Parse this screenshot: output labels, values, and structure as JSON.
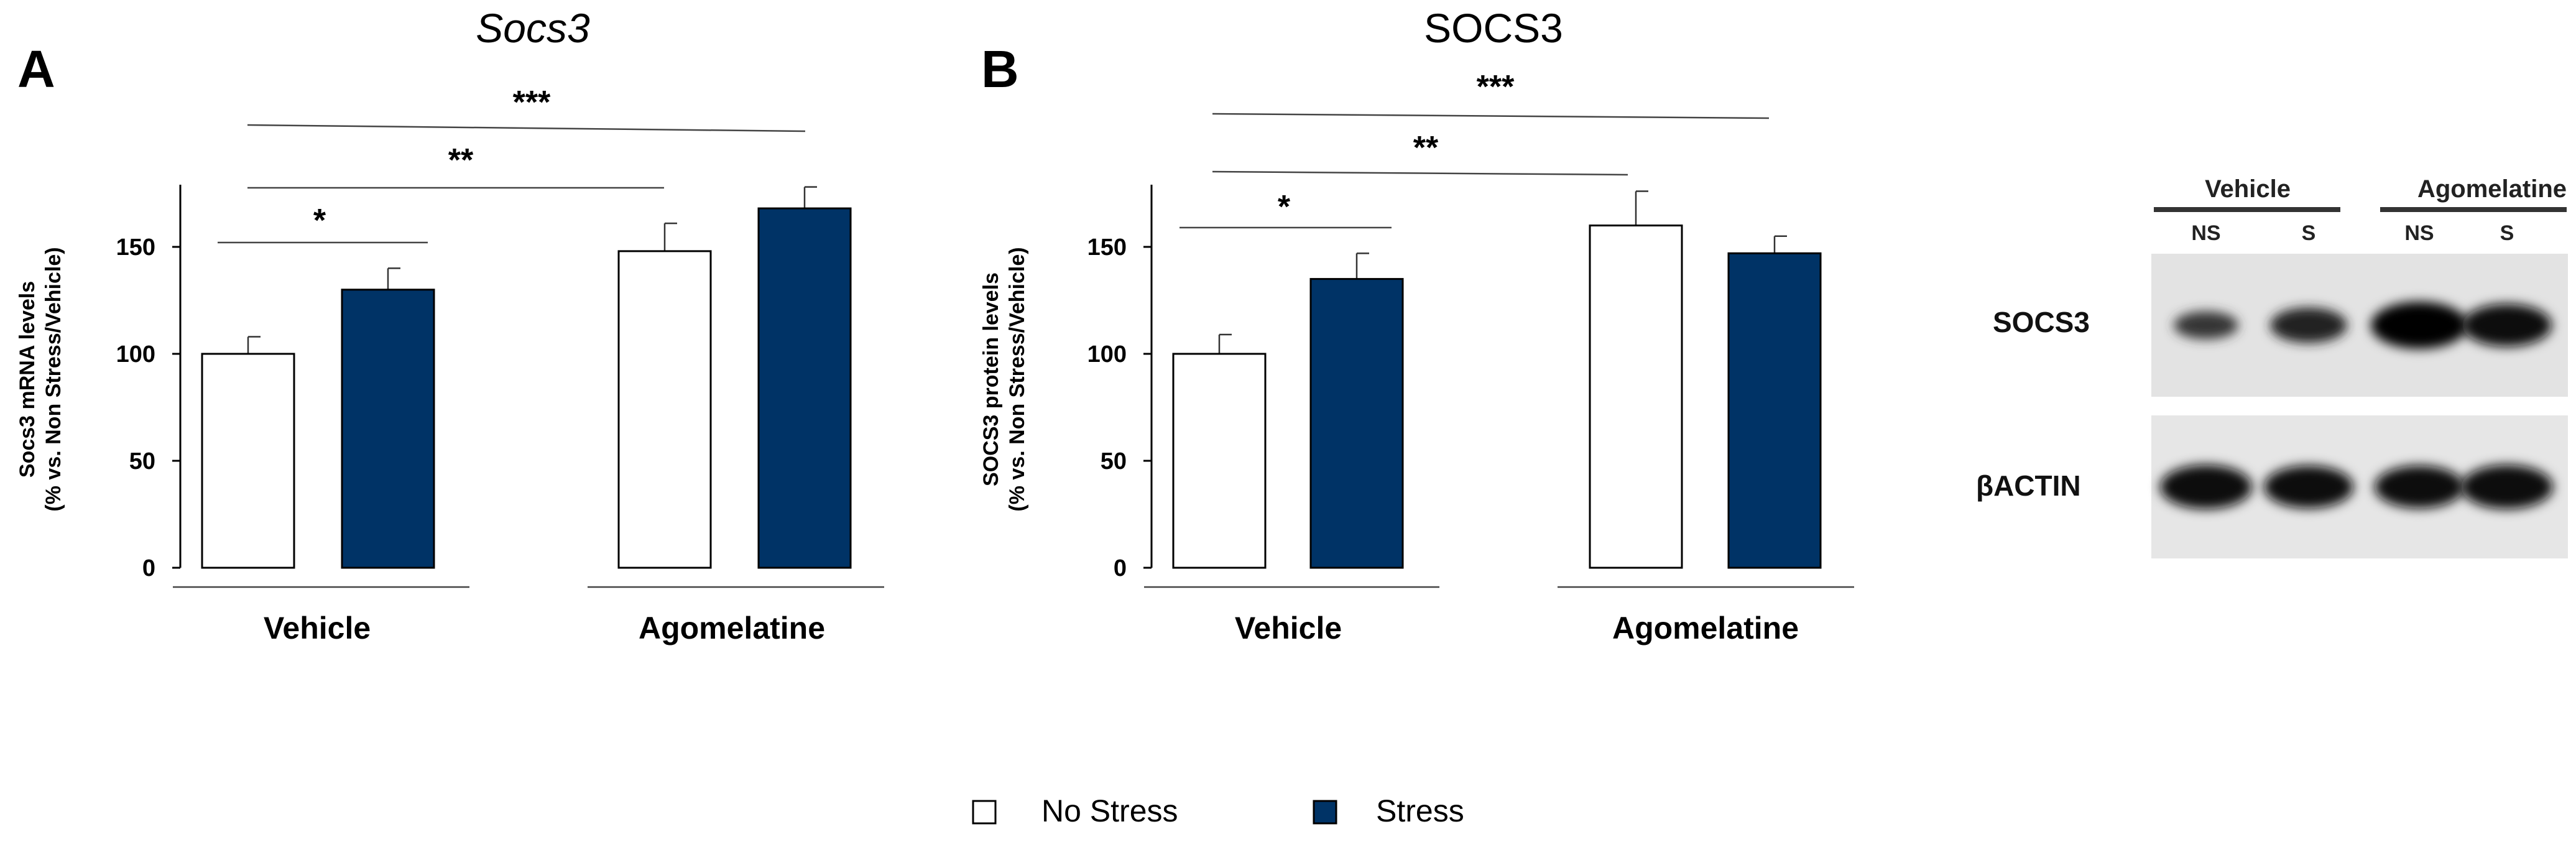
{
  "chart_data": [
    {
      "panel": "A",
      "type": "bar",
      "title": "Socs3",
      "title_italic": true,
      "ylabel_line1": "Socs3 mRNA levels",
      "ylabel_line2": "(% vs. Non Stress/Vehicle)",
      "ylim": [
        0,
        175
      ],
      "yticks": [
        "0",
        "50",
        "100",
        "150"
      ],
      "groups": [
        "Vehicle",
        "Agomelatine"
      ],
      "series": [
        {
          "name": "No Stress",
          "color": "#ffffff",
          "values": [
            100,
            148
          ],
          "errors": [
            8,
            13
          ]
        },
        {
          "name": "Stress",
          "color": "#003366",
          "values": [
            130,
            168
          ],
          "errors": [
            10,
            10
          ]
        }
      ],
      "significance": [
        {
          "label": "*",
          "from_bar": 0,
          "to_bar": 1
        },
        {
          "label": "**",
          "from_bar": 0,
          "to_bar": 2
        },
        {
          "label": "***",
          "from_bar": 0,
          "to_bar": 3
        }
      ]
    },
    {
      "panel": "B",
      "type": "bar",
      "title": "SOCS3",
      "title_italic": false,
      "ylabel_line1": "SOCS3 protein  levels",
      "ylabel_line2": "(% vs. Non Stress/Vehicle)",
      "ylim": [
        0,
        175
      ],
      "yticks": [
        "0",
        "50",
        "100",
        "150"
      ],
      "groups": [
        "Vehicle",
        "Agomelatine"
      ],
      "series": [
        {
          "name": "No Stress",
          "color": "#ffffff",
          "values": [
            100,
            160
          ],
          "errors": [
            9,
            16
          ]
        },
        {
          "name": "Stress",
          "color": "#003366",
          "values": [
            135,
            147
          ],
          "errors": [
            12,
            8
          ]
        }
      ],
      "significance": [
        {
          "label": "*",
          "from_bar": 0,
          "to_bar": 1
        },
        {
          "label": "**",
          "from_bar": 0,
          "to_bar": 2
        },
        {
          "label": "***",
          "from_bar": 0,
          "to_bar": 3
        }
      ]
    }
  ],
  "legend": [
    {
      "label": "No Stress",
      "color": "#ffffff"
    },
    {
      "label": "Stress",
      "color": "#003366"
    }
  ],
  "western_blot": {
    "groups": [
      "Vehicle",
      "Agomelatine"
    ],
    "lanes": [
      "NS",
      "S",
      "NS",
      "S"
    ],
    "proteins": [
      {
        "label": "SOCS3",
        "intensity": [
          0.35,
          0.6,
          1.0,
          0.85
        ]
      },
      {
        "label": "βACTIN",
        "intensity": [
          0.9,
          0.85,
          0.85,
          0.9
        ]
      }
    ]
  }
}
